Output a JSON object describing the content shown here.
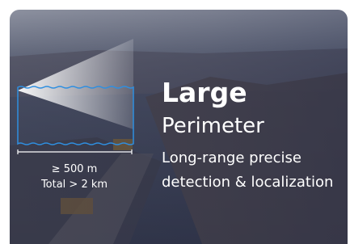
{
  "card": {
    "title": "Large",
    "subtitle": "Perimeter",
    "description": [
      "Long-range precise",
      "detection & localization"
    ],
    "range": "≥ 500 m",
    "total": "Total > 2 km"
  }
}
